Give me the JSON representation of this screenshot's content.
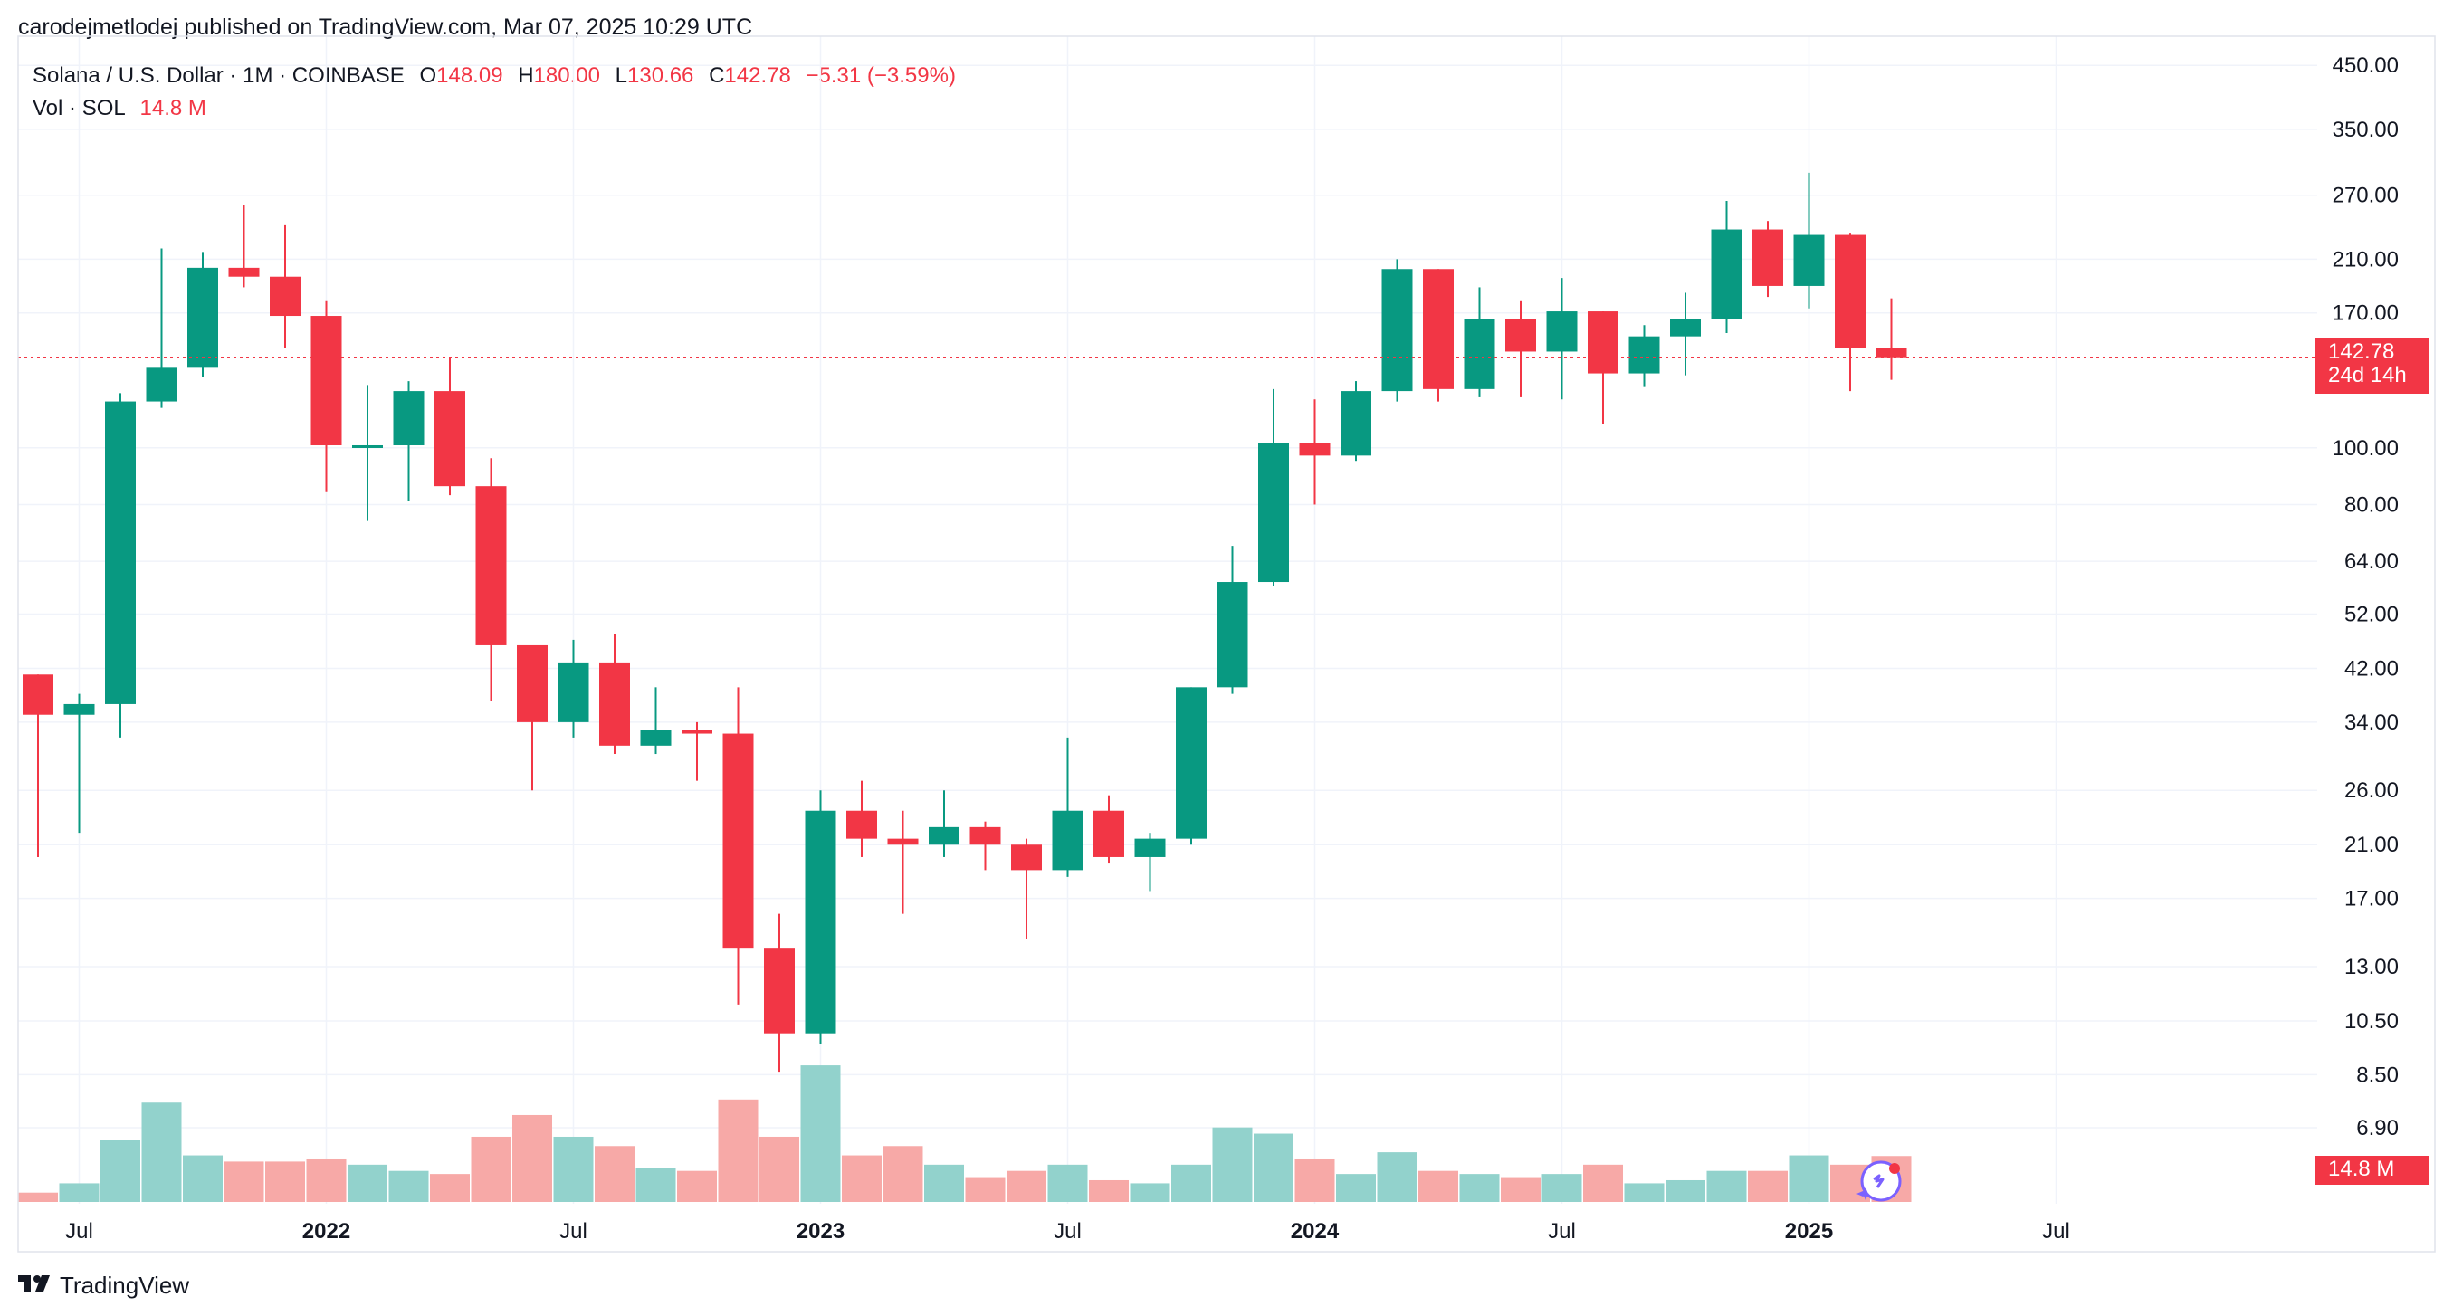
{
  "header": {
    "published": "carodejmetlodej published on TradingView.com, Mar 07, 2025 10:29 UTC",
    "symbol": "Solana / U.S. Dollar · 1M · COINBASE",
    "o_label": "O",
    "o_value": "148.09",
    "h_label": "H",
    "h_value": "180.00",
    "l_label": "L",
    "l_value": "130.66",
    "c_label": "C",
    "c_value": "142.78",
    "change": "−5.31 (−3.59%)",
    "vol_label": "Vol · SOL",
    "vol_value": "14.8 M"
  },
  "price_tag": {
    "price": "142.78",
    "countdown": "24d 14h"
  },
  "volume_tag": "14.8 M",
  "brand": "TradingView",
  "colors": {
    "up": "#089981",
    "down": "#f23645",
    "up_volume": "#92d2cc",
    "down_volume": "#f7a9a7",
    "grid": "#f0f3fa",
    "last_price_line": "#f23645"
  },
  "chart_data": {
    "type": "candlestick",
    "title": "Solana / U.S. Dollar · 1M · COINBASE",
    "y_scale": "log",
    "y_ticks": [
      "450.00",
      "350.00",
      "270.00",
      "210.00",
      "170.00",
      "100.00",
      "80.00",
      "64.00",
      "52.00",
      "42.00",
      "34.00",
      "26.00",
      "21.00",
      "17.00",
      "13.00",
      "10.50",
      "8.50",
      "6.90"
    ],
    "y_range": [
      6.2,
      470
    ],
    "x_tick_labels": [
      "Jul",
      "2022",
      "Jul",
      "2023",
      "Jul",
      "2024",
      "Jul",
      "2025",
      "Jul"
    ],
    "x_ticks_at_index": [
      1,
      7,
      13,
      19,
      25,
      31,
      37,
      43,
      49
    ],
    "months": [
      "2021-06",
      "2021-07",
      "2021-08",
      "2021-09",
      "2021-10",
      "2021-11",
      "2021-12",
      "2022-01",
      "2022-02",
      "2022-03",
      "2022-04",
      "2022-05",
      "2022-06",
      "2022-07",
      "2022-08",
      "2022-09",
      "2022-10",
      "2022-11",
      "2022-12",
      "2023-01",
      "2023-02",
      "2023-03",
      "2023-04",
      "2023-05",
      "2023-06",
      "2023-07",
      "2023-08",
      "2023-09",
      "2023-10",
      "2023-11",
      "2023-12",
      "2024-01",
      "2024-02",
      "2024-03",
      "2024-04",
      "2024-05",
      "2024-06",
      "2024-07",
      "2024-08",
      "2024-09",
      "2024-10",
      "2024-11",
      "2024-12",
      "2025-01",
      "2025-02",
      "2025-03"
    ],
    "ohlc": [
      [
        41,
        41,
        20,
        35
      ],
      [
        35,
        38,
        22,
        36.5
      ],
      [
        36.5,
        124,
        32,
        120
      ],
      [
        120,
        219,
        117,
        137
      ],
      [
        137,
        216,
        132,
        203
      ],
      [
        203,
        260,
        188,
        196
      ],
      [
        196,
        240,
        148,
        168
      ],
      [
        168,
        178,
        84,
        101
      ],
      [
        101,
        128,
        75,
        101
      ],
      [
        101,
        130,
        81,
        125
      ],
      [
        125,
        143,
        83,
        86
      ],
      [
        86,
        96,
        37,
        46
      ],
      [
        46,
        46,
        26,
        34
      ],
      [
        34,
        47,
        32,
        43
      ],
      [
        43,
        48,
        30,
        31
      ],
      [
        31,
        39,
        30,
        33
      ],
      [
        33,
        34,
        27,
        32.5
      ],
      [
        32.5,
        39,
        11.2,
        14
      ],
      [
        14,
        16,
        8.6,
        10
      ],
      [
        10,
        26,
        9.6,
        24
      ],
      [
        24,
        27,
        20,
        21.5
      ],
      [
        21.5,
        24,
        16,
        21
      ],
      [
        21,
        26,
        20,
        22.5
      ],
      [
        22.5,
        23,
        19,
        21
      ],
      [
        21,
        21.5,
        14.5,
        19
      ],
      [
        19,
        32,
        18.5,
        24
      ],
      [
        24,
        25.5,
        19.5,
        20
      ],
      [
        20,
        22,
        17.5,
        21.5
      ],
      [
        21.5,
        39,
        21,
        39
      ],
      [
        39,
        68,
        38,
        59
      ],
      [
        59,
        126,
        58,
        102
      ],
      [
        102,
        121,
        80,
        97
      ],
      [
        97,
        130,
        95,
        125
      ],
      [
        125,
        210,
        120,
        202
      ],
      [
        202,
        202,
        120,
        126
      ],
      [
        126,
        188,
        122,
        166
      ],
      [
        166,
        178,
        122,
        146
      ],
      [
        146,
        195,
        121,
        171
      ],
      [
        171,
        171,
        110,
        134
      ],
      [
        134,
        162,
        127,
        155
      ],
      [
        155,
        184,
        133,
        166
      ],
      [
        166,
        264,
        157,
        236
      ],
      [
        236,
        244,
        181,
        189
      ],
      [
        189,
        295,
        173,
        231
      ],
      [
        231,
        233,
        125,
        148
      ],
      [
        148,
        180,
        130.66,
        142.78
      ]
    ],
    "volume_millions": [
      3,
      6,
      20,
      32,
      15,
      13,
      13,
      14,
      12,
      10,
      9,
      21,
      28,
      21,
      18,
      11,
      10,
      33,
      21,
      44,
      15,
      18,
      12,
      8,
      10,
      12,
      7,
      6,
      12,
      24,
      22,
      14,
      9,
      16,
      10,
      9,
      8,
      9,
      12,
      6,
      7,
      10,
      10,
      15,
      12,
      14.8
    ],
    "volume_note": "Vol · SOL",
    "last_price": 142.78,
    "last_change": "−5.31 (−3.59%)"
  }
}
